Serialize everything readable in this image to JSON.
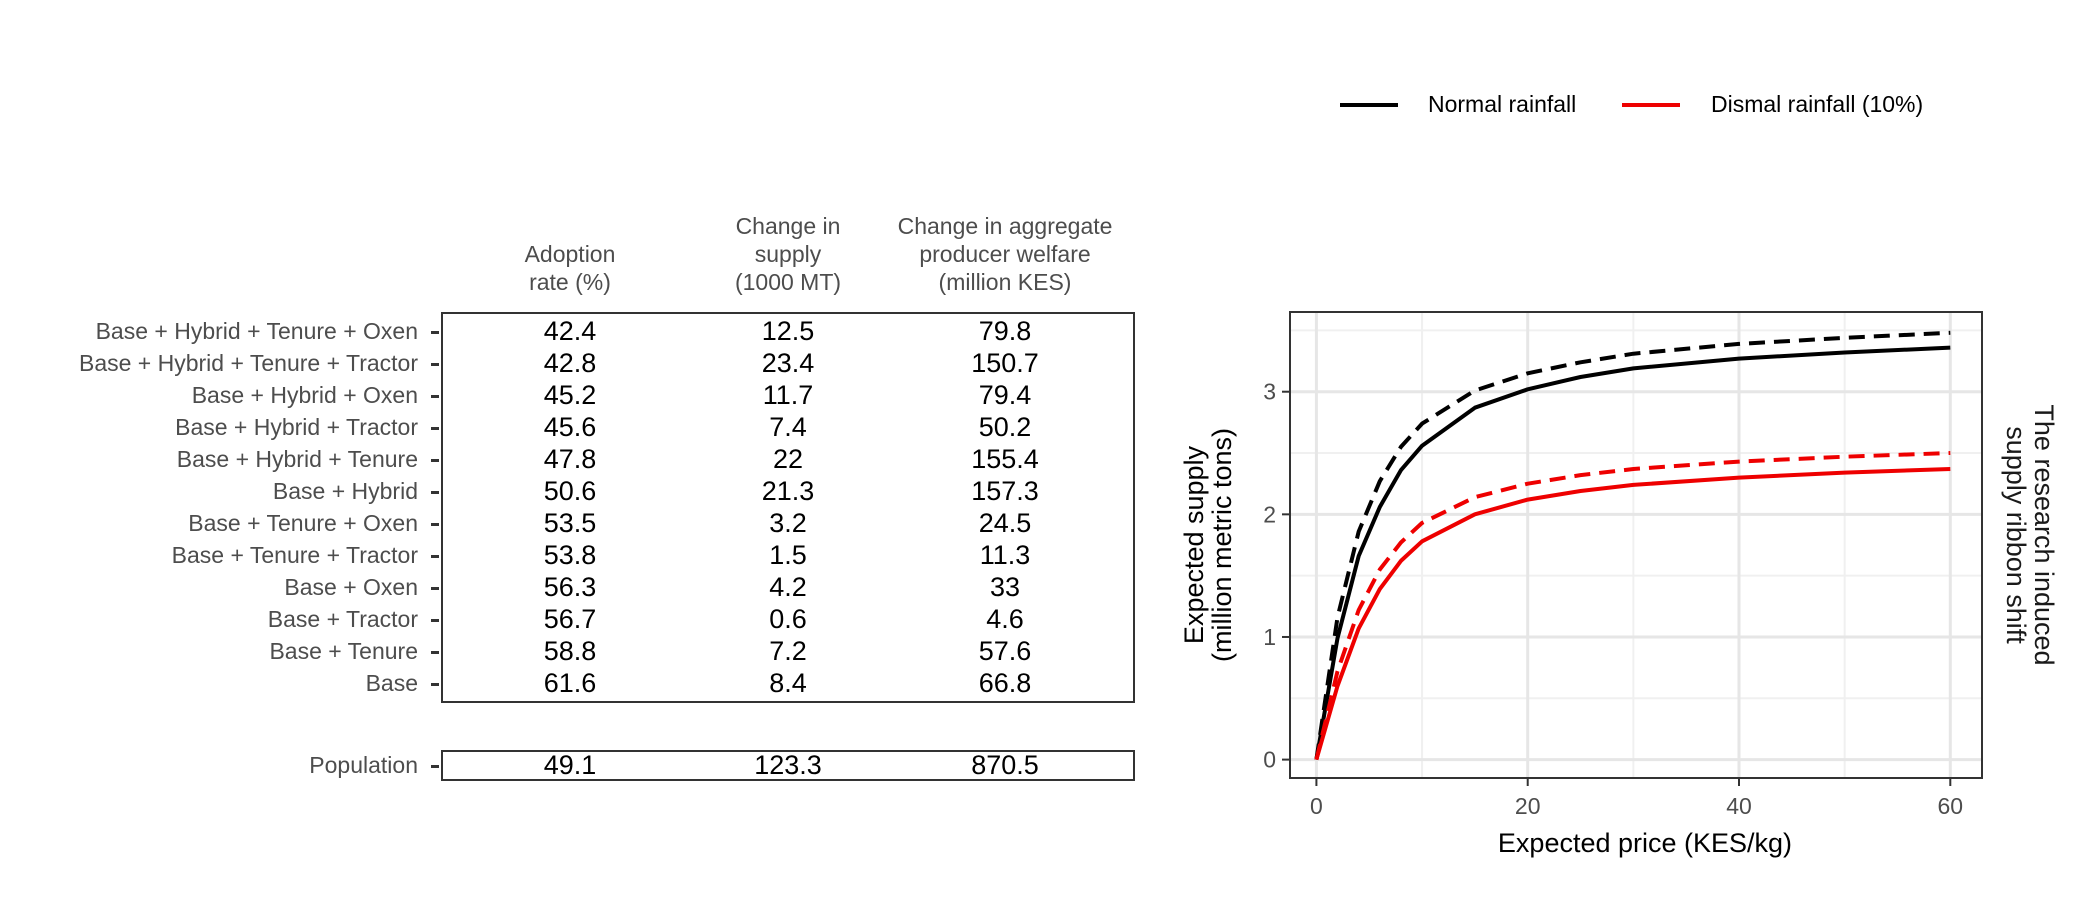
{
  "legend": {
    "items": [
      {
        "label": "Normal rainfall",
        "color": "#000000"
      },
      {
        "label": "Dismal rainfall (10%)",
        "color": "#ee0000"
      }
    ]
  },
  "table": {
    "columns": [
      "Adoption\nrate (%)",
      "Change in\nsupply\n(1000 MT)",
      "Change in aggregate\nproducer welfare\n(million KES)"
    ],
    "rows": [
      {
        "label": "Base + Hybrid + Tenure + Oxen",
        "values": [
          "42.4",
          "12.5",
          "79.8"
        ]
      },
      {
        "label": "Base + Hybrid + Tenure + Tractor",
        "values": [
          "42.8",
          "23.4",
          "150.7"
        ]
      },
      {
        "label": "Base + Hybrid + Oxen",
        "values": [
          "45.2",
          "11.7",
          "79.4"
        ]
      },
      {
        "label": "Base + Hybrid + Tractor",
        "values": [
          "45.6",
          "7.4",
          "50.2"
        ]
      },
      {
        "label": "Base + Hybrid + Tenure",
        "values": [
          "47.8",
          "22",
          "155.4"
        ]
      },
      {
        "label": "Base + Hybrid",
        "values": [
          "50.6",
          "21.3",
          "157.3"
        ]
      },
      {
        "label": "Base + Tenure + Oxen",
        "values": [
          "53.5",
          "3.2",
          "24.5"
        ]
      },
      {
        "label": "Base + Tenure + Tractor",
        "values": [
          "53.8",
          "1.5",
          "11.3"
        ]
      },
      {
        "label": "Base + Oxen",
        "values": [
          "56.3",
          "4.2",
          "33"
        ]
      },
      {
        "label": "Base + Tractor",
        "values": [
          "56.7",
          "0.6",
          "4.6"
        ]
      },
      {
        "label": "Base + Tenure",
        "values": [
          "58.8",
          "7.2",
          "57.6"
        ]
      },
      {
        "label": "Base",
        "values": [
          "61.6",
          "8.4",
          "66.8"
        ]
      }
    ],
    "population": {
      "label": "Population",
      "values": [
        "49.1",
        "123.3",
        "870.5"
      ]
    }
  },
  "chart_data": {
    "type": "line",
    "xlabel": "Expected price (KES/kg)",
    "ylabel": "Expected supply\n(million metric tons)",
    "strip_label": "The research induced\nsupply ribbon shift",
    "xlim": [
      -2.5,
      63
    ],
    "ylim": [
      -0.15,
      3.65
    ],
    "xticks": [
      0,
      20,
      40,
      60
    ],
    "yticks": [
      0,
      1,
      2,
      3
    ],
    "grid": true,
    "series": [
      {
        "name": "Normal rainfall",
        "style": "solid",
        "color": "#000000",
        "x": [
          0,
          2,
          4,
          6,
          8,
          10,
          15,
          20,
          25,
          30,
          40,
          50,
          60
        ],
        "y": [
          0,
          0.99,
          1.66,
          2.06,
          2.36,
          2.56,
          2.87,
          3.02,
          3.12,
          3.19,
          3.27,
          3.32,
          3.36
        ]
      },
      {
        "name": "Normal rainfall",
        "style": "dashed",
        "color": "#000000",
        "x": [
          0,
          2,
          4,
          6,
          8,
          10,
          15,
          20,
          25,
          30,
          40,
          50,
          60
        ],
        "y": [
          0,
          1.16,
          1.86,
          2.27,
          2.55,
          2.74,
          3.01,
          3.15,
          3.24,
          3.31,
          3.39,
          3.44,
          3.48
        ]
      },
      {
        "name": "Dismal rainfall (10%)",
        "style": "solid",
        "color": "#ee0000",
        "x": [
          0,
          2,
          4,
          6,
          8,
          10,
          15,
          20,
          25,
          30,
          40,
          50,
          60
        ],
        "y": [
          0,
          0.6,
          1.07,
          1.39,
          1.62,
          1.78,
          2.0,
          2.12,
          2.19,
          2.24,
          2.3,
          2.34,
          2.37
        ]
      },
      {
        "name": "Dismal rainfall (10%)",
        "style": "dashed",
        "color": "#ee0000",
        "x": [
          0,
          2,
          4,
          6,
          8,
          10,
          15,
          20,
          25,
          30,
          40,
          50,
          60
        ],
        "y": [
          0,
          0.72,
          1.22,
          1.55,
          1.77,
          1.93,
          2.14,
          2.25,
          2.32,
          2.37,
          2.43,
          2.47,
          2.5
        ]
      }
    ]
  }
}
